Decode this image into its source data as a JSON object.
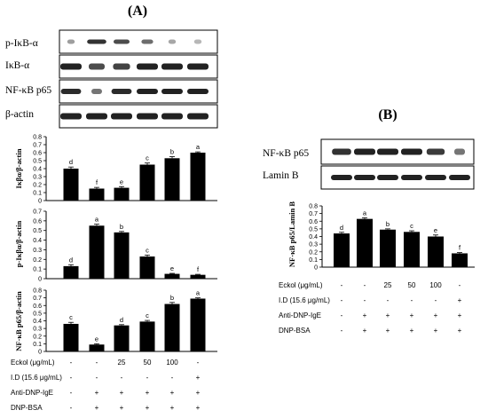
{
  "panels": {
    "a": {
      "label": "(A)",
      "blot_labels": [
        "p-IκB-α",
        "IκB-α",
        "NF-κB p65",
        "β-actin"
      ],
      "conditions": [
        {
          "label": "Eckol (μg/mL)",
          "values": [
            "-",
            "-",
            "25",
            "50",
            "100",
            "-"
          ]
        },
        {
          "label": "I.D (15.6 μg/mL)",
          "values": [
            "-",
            "-",
            "-",
            "-",
            "-",
            "+"
          ]
        },
        {
          "label": "Anti-DNP-IgE",
          "values": [
            "-",
            "+",
            "+",
            "+",
            "+",
            "+"
          ]
        },
        {
          "label": "DNP-BSA",
          "values": [
            "-",
            "+",
            "+",
            "+",
            "+",
            "+"
          ]
        }
      ]
    },
    "b": {
      "label": "(B)",
      "blot_labels": [
        "NF-κB p65",
        "Lamin B"
      ],
      "conditions": [
        {
          "label": "Eckol (μg/mL)",
          "values": [
            "-",
            "-",
            "25",
            "50",
            "100",
            "-"
          ]
        },
        {
          "label": "I.D (15.6 μg/mL)",
          "values": [
            "-",
            "-",
            "-",
            "-",
            "-",
            "+"
          ]
        },
        {
          "label": "Anti-DNP-IgE",
          "values": [
            "-",
            "+",
            "+",
            "+",
            "+",
            "+"
          ]
        },
        {
          "label": "DNP-BSA",
          "values": [
            "-",
            "+",
            "+",
            "+",
            "+",
            "+"
          ]
        }
      ]
    }
  },
  "chart_data": [
    {
      "type": "bar",
      "panel": "A",
      "ylabel": "Iκβα/β-actin",
      "ylim": [
        0,
        0.8
      ],
      "yticks": [
        "0",
        "0.1",
        "0.2",
        "0.3",
        "0.4",
        "0.5",
        "0.6",
        "0.7",
        "0.8"
      ],
      "values": [
        0.4,
        0.15,
        0.16,
        0.45,
        0.53,
        0.6
      ],
      "errors": [
        0.02,
        0.015,
        0.015,
        0.02,
        0.02,
        0.01
      ],
      "letters": [
        "d",
        "f",
        "e",
        "c",
        "b",
        "a"
      ]
    },
    {
      "type": "bar",
      "panel": "A",
      "ylabel": "p-Iκβα/β-actin",
      "ylim": [
        0,
        0.7
      ],
      "yticks": [
        "0",
        "0.1",
        "0.2",
        "0.3",
        "0.4",
        "0.5",
        "0.6",
        "0.7"
      ],
      "values": [
        0.13,
        0.55,
        0.48,
        0.23,
        0.05,
        0.04
      ],
      "errors": [
        0.015,
        0.015,
        0.01,
        0.015,
        0.005,
        0.005
      ],
      "letters": [
        "d",
        "a",
        "b",
        "c",
        "e",
        "f"
      ]
    },
    {
      "type": "bar",
      "panel": "A",
      "ylabel": "NF-κB p65/β-actin",
      "ylim": [
        0,
        0.8
      ],
      "yticks": [
        "0",
        "0.1",
        "0.2",
        "0.3",
        "0.4",
        "0.5",
        "0.6",
        "0.7",
        "0.8"
      ],
      "values": [
        0.36,
        0.09,
        0.34,
        0.39,
        0.62,
        0.69
      ],
      "errors": [
        0.02,
        0.01,
        0.01,
        0.015,
        0.02,
        0.01
      ],
      "letters": [
        "c",
        "e",
        "d",
        "c",
        "b",
        "a"
      ]
    },
    {
      "type": "bar",
      "panel": "B",
      "ylabel": "NF-κB p65/Lamin B",
      "ylim": [
        0,
        0.8
      ],
      "yticks": [
        "0",
        "0.1",
        "0.2",
        "0.3",
        "0.4",
        "0.5",
        "0.6",
        "0.7",
        "0.8"
      ],
      "values": [
        0.44,
        0.63,
        0.49,
        0.46,
        0.4,
        0.18
      ],
      "errors": [
        0.015,
        0.015,
        0.01,
        0.015,
        0.02,
        0.01
      ],
      "letters": [
        "d",
        "a",
        "b",
        "c",
        "e",
        "f"
      ]
    }
  ],
  "colors": {
    "bar": "#000000",
    "band": "#222222",
    "frame": "#000000"
  }
}
